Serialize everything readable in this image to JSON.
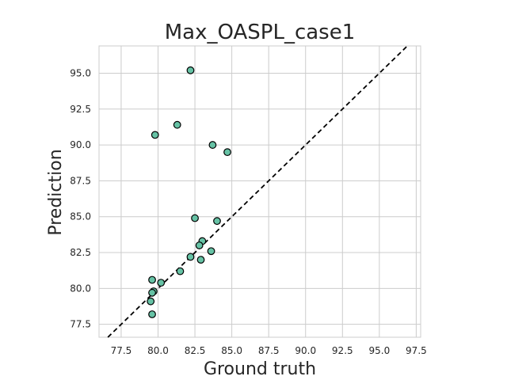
{
  "chart_data": {
    "type": "scatter",
    "title": "Max_OASPL_case1",
    "xlabel": "Ground truth",
    "ylabel": "Prediction",
    "xlim": [
      76.0,
      97.8
    ],
    "ylim": [
      76.6,
      96.9
    ],
    "xticks": [
      77.5,
      80.0,
      82.5,
      85.0,
      87.5,
      90.0,
      92.5,
      95.0,
      97.5
    ],
    "yticks": [
      77.5,
      80.0,
      82.5,
      85.0,
      87.5,
      90.0,
      92.5,
      95.0
    ],
    "grid": true,
    "reference_line": "y = x",
    "point_color": "#66c2a5",
    "points": [
      {
        "x": 82.2,
        "y": 95.2
      },
      {
        "x": 81.3,
        "y": 91.4
      },
      {
        "x": 79.8,
        "y": 90.7
      },
      {
        "x": 83.7,
        "y": 90.0
      },
      {
        "x": 84.7,
        "y": 89.5
      },
      {
        "x": 82.5,
        "y": 84.9
      },
      {
        "x": 84.0,
        "y": 84.7
      },
      {
        "x": 83.0,
        "y": 83.3
      },
      {
        "x": 82.8,
        "y": 83.0
      },
      {
        "x": 83.6,
        "y": 82.6
      },
      {
        "x": 82.2,
        "y": 82.2
      },
      {
        "x": 82.9,
        "y": 82.0
      },
      {
        "x": 81.5,
        "y": 81.2
      },
      {
        "x": 79.6,
        "y": 80.6
      },
      {
        "x": 80.2,
        "y": 80.4
      },
      {
        "x": 79.7,
        "y": 79.8
      },
      {
        "x": 79.6,
        "y": 79.7
      },
      {
        "x": 79.5,
        "y": 79.1
      },
      {
        "x": 79.6,
        "y": 78.2
      }
    ]
  }
}
